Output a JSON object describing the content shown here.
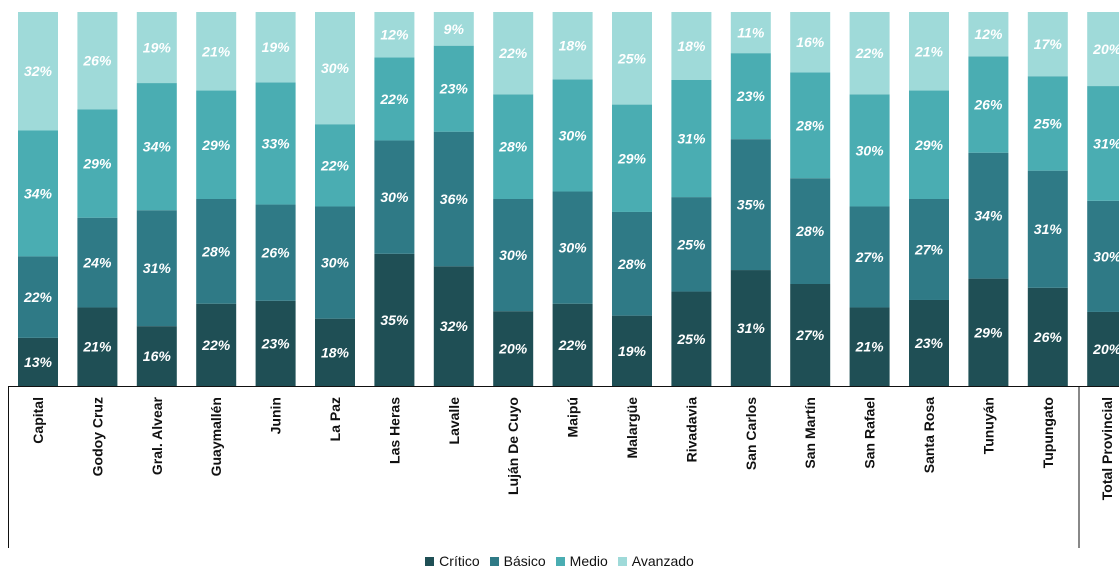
{
  "chart_data": {
    "type": "bar",
    "stacked": true,
    "percent_stacked": true,
    "grid": false,
    "legend_position": "bottom",
    "categories": [
      "Capital",
      "Godoy Cruz",
      "Gral. Alvear",
      "Guaymallén",
      "Junin",
      "La Paz",
      "Las Heras",
      "Lavalle",
      "Luján De Cuyo",
      "Maipú",
      "Malargüe",
      "Rivadavia",
      "San Carlos",
      "San Martín",
      "San Rafael",
      "Santa Rosa",
      "Tunuyán",
      "Tupungato",
      "Total Provincial"
    ],
    "series": [
      {
        "name": "Crítico",
        "color": "#1f4f55",
        "values": [
          13,
          21,
          16,
          22,
          23,
          18,
          35,
          32,
          20,
          22,
          19,
          25,
          31,
          27,
          21,
          23,
          29,
          26,
          20
        ]
      },
      {
        "name": "Básico",
        "color": "#2f7a86",
        "values": [
          22,
          24,
          31,
          28,
          26,
          30,
          30,
          36,
          30,
          30,
          28,
          25,
          35,
          28,
          27,
          27,
          34,
          31,
          30
        ]
      },
      {
        "name": "Medio",
        "color": "#4aadb2",
        "values": [
          34,
          29,
          34,
          29,
          33,
          22,
          22,
          23,
          28,
          30,
          29,
          31,
          23,
          28,
          30,
          29,
          26,
          25,
          31
        ]
      },
      {
        "name": "Avanzado",
        "color": "#9fdad9",
        "values": [
          32,
          26,
          19,
          21,
          19,
          30,
          12,
          9,
          22,
          18,
          25,
          18,
          11,
          16,
          22,
          21,
          12,
          17,
          20
        ]
      }
    ],
    "value_suffix": "%"
  }
}
